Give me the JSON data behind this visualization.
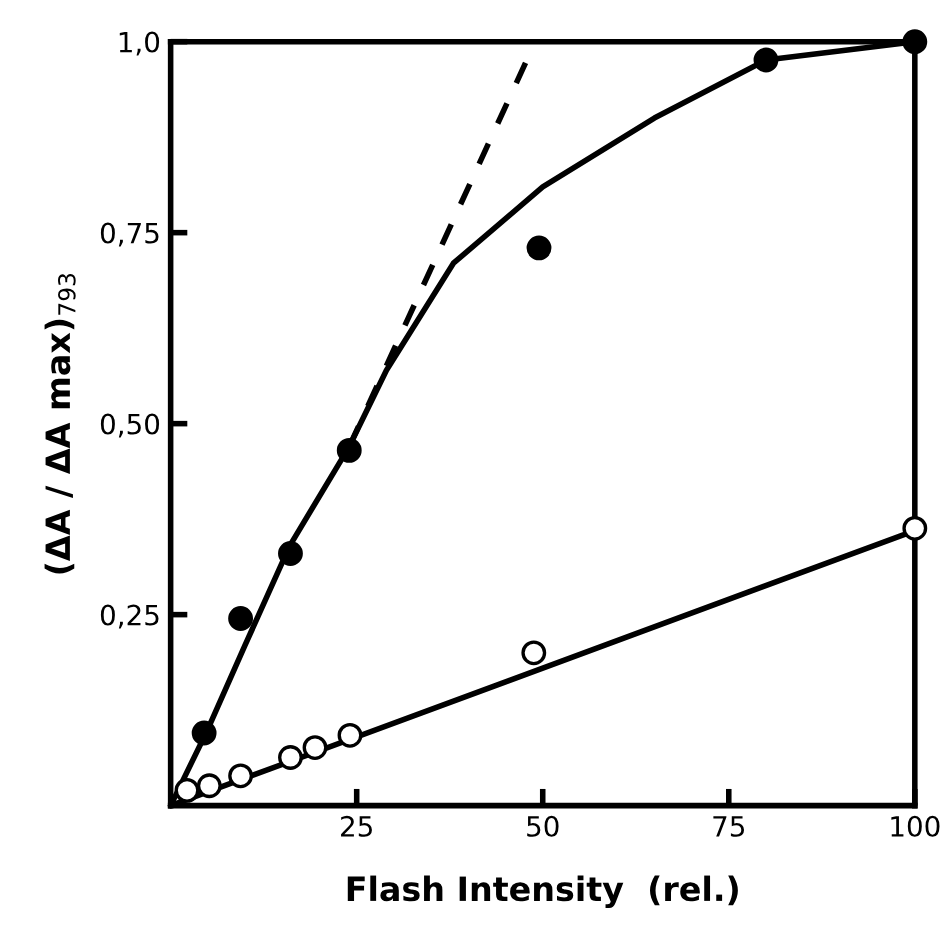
{
  "chart_data": {
    "type": "line",
    "xlabel": "Flash Intensity  (rel.)",
    "ylabel": "(ΔA / ΔA max)$_{793}$",
    "xlim": [
      0,
      100
    ],
    "ylim": [
      0,
      1.0
    ],
    "xticks": [
      25,
      50,
      75,
      100
    ],
    "yticks": [
      {
        "value": 0.25,
        "label": "0,25"
      },
      {
        "value": 0.5,
        "label": "0,50"
      },
      {
        "value": 0.75,
        "label": "0,75"
      },
      {
        "value": 1.0,
        "label": "1,0"
      }
    ],
    "grid": false,
    "legend": false,
    "marker": "none",
    "series": [
      {
        "color": "#000000",
        "line_style": "solid",
        "x": [
          0,
          5,
          10,
          16,
          24,
          29,
          38,
          50,
          65,
          80,
          100
        ],
        "values": [
          0,
          0.1,
          0.21,
          0.34,
          0.47,
          0.57,
          0.71,
          0.81,
          0.9,
          0.976,
          1.0
        ]
      },
      {
        "color": "#000000",
        "line_style": "dashed",
        "x": [
          24,
          49
        ],
        "values": [
          0.47,
          1.0
        ]
      },
      {
        "color": "#000000",
        "line_style": "solid",
        "x": [
          0,
          100
        ],
        "values": [
          0,
          0.36
        ]
      },
      {
        "type": "scatter",
        "marker": "circle",
        "color": "#000000",
        "x": [
          4.5,
          9.4,
          16.1,
          24,
          49.5,
          80,
          100
        ],
        "values": [
          0.095,
          0.245,
          0.33,
          0.465,
          0.73,
          0.976,
          1.0
        ]
      },
      {
        "type": "scatter",
        "marker": "circle",
        "color": "#ffffff",
        "x": [
          2.2,
          5.2,
          9.4,
          16.1,
          19.4,
          24.1,
          48.8,
          100
        ],
        "values": [
          0.02,
          0.026,
          0.039,
          0.063,
          0.076,
          0.092,
          0.2,
          0.363
        ]
      }
    ]
  }
}
